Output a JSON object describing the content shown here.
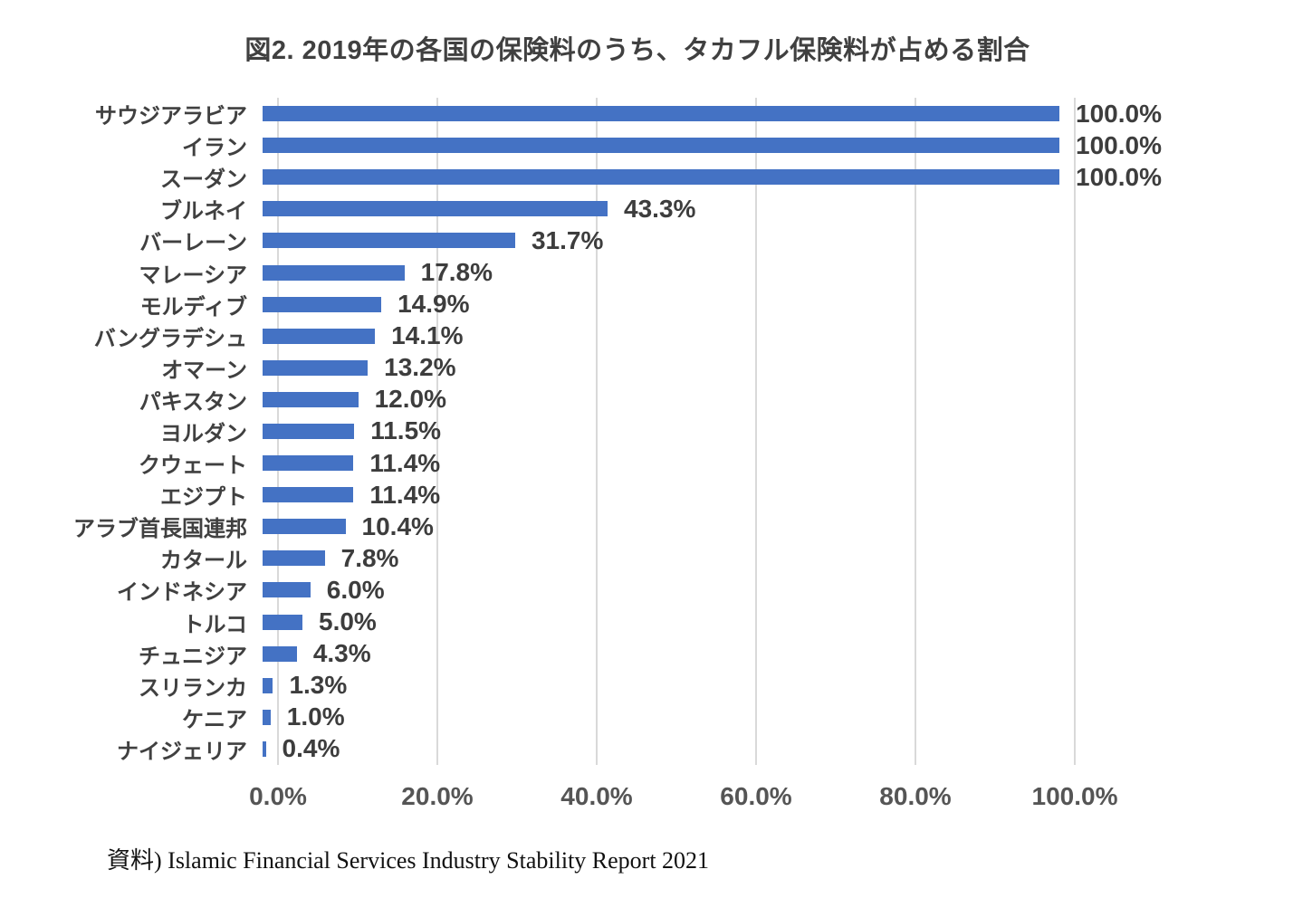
{
  "chart_data": {
    "type": "bar",
    "orientation": "horizontal",
    "title": "図2. 2019年の各国の保険料のうち、タカフル保険料が占める割合",
    "categories": [
      "サウジアラビア",
      "イラン",
      "スーダン",
      "ブルネイ",
      "バーレーン",
      "マレーシア",
      "モルディブ",
      "バングラデシュ",
      "オマーン",
      "パキスタン",
      "ヨルダン",
      "クウェート",
      "エジプト",
      "アラブ首長国連邦",
      "カタール",
      "インドネシア",
      "トルコ",
      "チュニジア",
      "スリランカ",
      "ケニア",
      "ナイジェリア"
    ],
    "values": [
      100.0,
      100.0,
      100.0,
      43.3,
      31.7,
      17.8,
      14.9,
      14.1,
      13.2,
      12.0,
      11.5,
      11.4,
      11.4,
      10.4,
      7.8,
      6.0,
      5.0,
      4.3,
      1.3,
      1.0,
      0.4
    ],
    "data_labels": [
      "100.0%",
      "100.0%",
      "100.0%",
      "43.3%",
      "31.7%",
      "17.8%",
      "14.9%",
      "14.1%",
      "13.2%",
      "12.0%",
      "11.5%",
      "11.4%",
      "11.4%",
      "10.4%",
      "7.8%",
      "6.0%",
      "5.0%",
      "4.3%",
      "1.3%",
      "1.0%",
      "0.4%"
    ],
    "x_ticks": [
      "0.0%",
      "20.0%",
      "40.0%",
      "60.0%",
      "80.0%",
      "100.0%"
    ],
    "xlim": [
      0,
      100
    ],
    "grid": true,
    "legend_position": "none",
    "bar_color": "#4472C4",
    "gridline_color": "#D9D9D9"
  },
  "source": "資料) Islamic Financial Services Industry Stability Report 2021"
}
